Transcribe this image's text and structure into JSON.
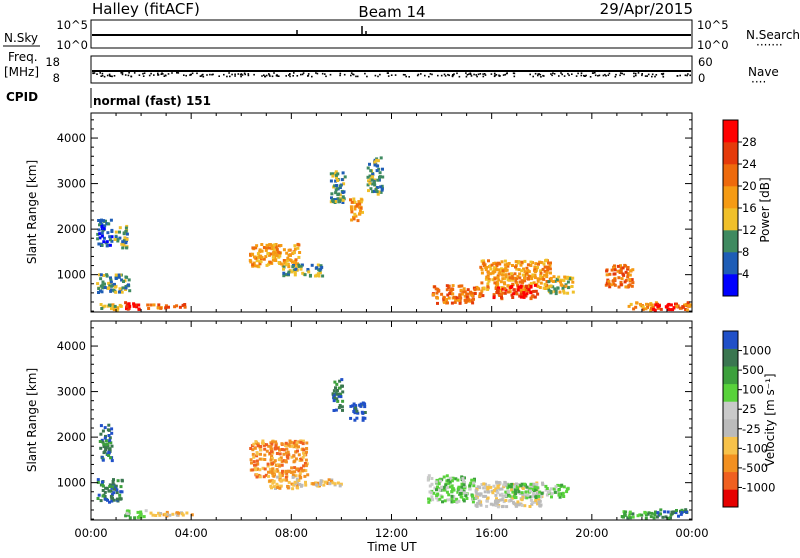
{
  "header": {
    "station": "Halley (fitACF)",
    "beam": "Beam 14",
    "date": "29/Apr/2015"
  },
  "panel_labels": {
    "nsky": "N.Sky",
    "nsearch": "N.Search",
    "nsearch_dots": "·······",
    "freq_line1": "Freq.",
    "freq_line2": "[MHz]",
    "nave": "Nave",
    "nave_dots": "····",
    "cpid": "CPID",
    "cpid_value": "normal (fast) 151"
  },
  "small_ticks": {
    "noise_left": [
      "10^5",
      "10^0"
    ],
    "noise_right": [
      "10^5",
      "10^0"
    ],
    "freq_left": [
      "18",
      "8"
    ],
    "nave_right": [
      "60",
      "0"
    ]
  },
  "colors": {
    "power_scale": [
      "#0000ff",
      "#1e5db6",
      "#3f8a60",
      "#f0c02a",
      "#f59b14",
      "#ee6a0c",
      "#e53a0a",
      "#ff0000"
    ],
    "velocity_scale": [
      "#e60000",
      "#f06020",
      "#f29020",
      "#f7c24a",
      "#bbbbbb",
      "#cacaca",
      "#58d23b",
      "#3ca03c",
      "#3a7650",
      "#2050c8"
    ]
  },
  "chart_data": [
    {
      "type": "heatmap",
      "title": "",
      "xlabel": "",
      "ylabel": "Slant Range [km]",
      "x_ticks": [
        "00:00",
        "04:00",
        "08:00",
        "12:00",
        "16:00",
        "20:00",
        "00:00"
      ],
      "y_ticks": [
        "1000",
        "2000",
        "3000",
        "4000"
      ],
      "xlim_hours": [
        0,
        24
      ],
      "ylim_km": [
        180,
        4550
      ],
      "colorbar": {
        "label": "Power [dB]",
        "ticks": [
          "4",
          "8",
          "12",
          "16",
          "20",
          "24",
          "28"
        ],
        "range": [
          0,
          32
        ]
      },
      "series": [
        {
          "t0": 1.3,
          "t1": 1.9,
          "r0": 260,
          "r1": 420,
          "level": 7
        },
        {
          "t0": 0.3,
          "t1": 1.2,
          "r0": 250,
          "r1": 380,
          "level": 3
        },
        {
          "t0": 2.2,
          "t1": 3.8,
          "r0": 280,
          "r1": 380,
          "level": 5
        },
        {
          "t0": 0.2,
          "t1": 1.5,
          "r0": 620,
          "r1": 1050,
          "level": 2
        },
        {
          "t0": 0.2,
          "t1": 0.8,
          "r0": 1650,
          "r1": 2250,
          "level": 1
        },
        {
          "t0": 0.9,
          "t1": 1.4,
          "r0": 1600,
          "r1": 2100,
          "level": 2
        },
        {
          "t0": 6.3,
          "t1": 8.3,
          "r0": 1200,
          "r1": 1700,
          "level": 4
        },
        {
          "t0": 7.6,
          "t1": 9.2,
          "r0": 1000,
          "r1": 1250,
          "level": 2
        },
        {
          "t0": 9.5,
          "t1": 10.1,
          "r0": 2600,
          "r1": 3300,
          "level": 2
        },
        {
          "t0": 10.3,
          "t1": 10.8,
          "r0": 2200,
          "r1": 2700,
          "level": 4
        },
        {
          "t0": 11.0,
          "t1": 11.6,
          "r0": 2800,
          "r1": 3600,
          "level": 2
        },
        {
          "t0": 13.6,
          "t1": 15.6,
          "r0": 400,
          "r1": 800,
          "level": 5
        },
        {
          "t0": 15.5,
          "t1": 18.3,
          "r0": 650,
          "r1": 1350,
          "level": 4
        },
        {
          "t0": 16.0,
          "t1": 17.8,
          "r0": 500,
          "r1": 800,
          "level": 6
        },
        {
          "t0": 18.2,
          "t1": 19.2,
          "r0": 600,
          "r1": 1000,
          "level": 3
        },
        {
          "t0": 20.5,
          "t1": 21.6,
          "r0": 750,
          "r1": 1250,
          "level": 5
        },
        {
          "t0": 21.4,
          "t1": 22.6,
          "r0": 240,
          "r1": 420,
          "level": 4
        },
        {
          "t0": 22.4,
          "t1": 23.3,
          "r0": 250,
          "r1": 400,
          "level": 7
        },
        {
          "t0": 23.3,
          "t1": 23.9,
          "r0": 250,
          "r1": 420,
          "level": 5
        }
      ]
    },
    {
      "type": "heatmap",
      "title": "",
      "xlabel": "Time UT",
      "ylabel": "Slant Range [km]",
      "x_ticks": [
        "00:00",
        "04:00",
        "08:00",
        "12:00",
        "16:00",
        "20:00",
        "00:00"
      ],
      "y_ticks": [
        "1000",
        "2000",
        "3000",
        "4000"
      ],
      "xlim_hours": [
        0,
        24
      ],
      "ylim_km": [
        180,
        4550
      ],
      "colorbar": {
        "label": "Velocity [m s⁻¹]",
        "ticks": [
          "-1000",
          "-500",
          "-100",
          "-25",
          "25",
          "100",
          "500",
          "1000"
        ]
      },
      "series": [
        {
          "t0": 0.2,
          "t1": 1.2,
          "r0": 600,
          "r1": 1100,
          "level": 8
        },
        {
          "t0": 0.3,
          "t1": 0.8,
          "r0": 1500,
          "r1": 2300,
          "level": 8
        },
        {
          "t0": 1.3,
          "t1": 2.2,
          "r0": 260,
          "r1": 420,
          "level": 6
        },
        {
          "t0": 2.2,
          "t1": 4.0,
          "r0": 280,
          "r1": 380,
          "level": 3
        },
        {
          "t0": 6.3,
          "t1": 8.6,
          "r0": 1150,
          "r1": 1950,
          "level": 2
        },
        {
          "t0": 7.0,
          "t1": 8.4,
          "r0": 900,
          "r1": 1200,
          "level": 3
        },
        {
          "t0": 8.5,
          "t1": 10.0,
          "r0": 950,
          "r1": 1100,
          "level": 3
        },
        {
          "t0": 10.3,
          "t1": 10.9,
          "r0": 2400,
          "r1": 2800,
          "level": 9
        },
        {
          "t0": 9.6,
          "t1": 10.0,
          "r0": 2600,
          "r1": 3300,
          "level": 8
        },
        {
          "t0": 13.4,
          "t1": 15.3,
          "r0": 600,
          "r1": 1200,
          "level": 6
        },
        {
          "t0": 15.3,
          "t1": 18.0,
          "r0": 500,
          "r1": 1050,
          "level": 4
        },
        {
          "t0": 16.5,
          "t1": 19.0,
          "r0": 700,
          "r1": 1000,
          "level": 6
        },
        {
          "t0": 21.0,
          "t1": 22.5,
          "r0": 250,
          "r1": 400,
          "level": 7
        },
        {
          "t0": 22.5,
          "t1": 23.8,
          "r0": 250,
          "r1": 450,
          "level": 8
        }
      ]
    }
  ]
}
